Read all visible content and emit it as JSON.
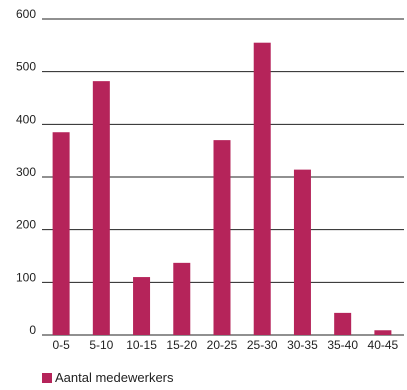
{
  "chart_data": {
    "type": "bar",
    "categories": [
      "0-5",
      "5-10",
      "10-15",
      "15-20",
      "20-25",
      "25-30",
      "30-35",
      "35-40",
      "40-45"
    ],
    "series": [
      {
        "name": "Aantal medewerkers",
        "values": [
          385,
          482,
          110,
          137,
          370,
          555,
          314,
          42,
          9
        ]
      }
    ],
    "ylim": [
      0,
      600
    ],
    "yticks": [
      0,
      100,
      200,
      300,
      400,
      500,
      600
    ],
    "grid": true,
    "legend_position": "bottom-left",
    "bar_color": "#b5245a",
    "axis_color": "#222222"
  }
}
